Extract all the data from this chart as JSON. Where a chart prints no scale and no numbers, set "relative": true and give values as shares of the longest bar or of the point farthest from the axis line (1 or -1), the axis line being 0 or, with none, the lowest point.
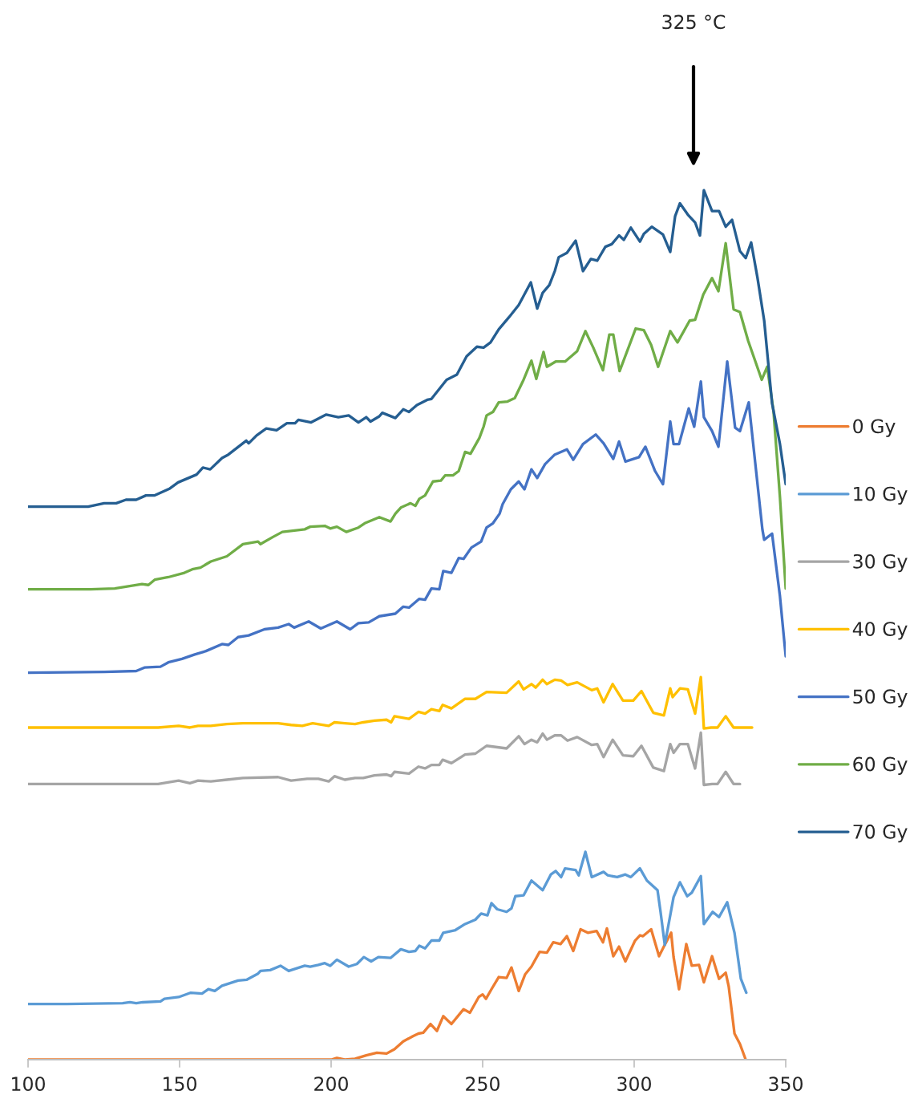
{
  "chart_data": {
    "type": "line",
    "relative": true,
    "xlim": [
      100,
      350
    ],
    "xticks": [
      100,
      150,
      200,
      250,
      300,
      350
    ],
    "grid": false,
    "legend": "right",
    "marker": "none",
    "line_style": "solid",
    "annotations": [
      "325 °C"
    ],
    "series": [
      {
        "name": "0 Gy",
        "color": "#ed7d31",
        "x": [
          100,
          200,
          201.9,
          204.5,
          207.9,
          211.6,
          215.1,
          218.3,
          220.9,
          223.8,
          227.0,
          228.8,
          230.4,
          232.8,
          234.9,
          237.0,
          239.7,
          243.7,
          245.8,
          248.7,
          250.0,
          251.1,
          252.9,
          255.3,
          257.9,
          259.5,
          261.9,
          264.0,
          266.1,
          268.8,
          271.2,
          273.3,
          275.7,
          277.8,
          279.9,
          282.3,
          284.7,
          287.6,
          289.7,
          291.0,
          293.1,
          295.0,
          297.1,
          300.3,
          301.9,
          302.9,
          305.6,
          308.2,
          309.8,
          312.2,
          313.0,
          314.8,
          317.2,
          319.0,
          321.4,
          323.0,
          325.7,
          328.0,
          330.2,
          331.2,
          333.1,
          334.9,
          336.8
        ],
        "values": [
          0,
          0,
          0.002,
          0,
          0.001,
          0.005,
          0.008,
          0.007,
          0.012,
          0.021,
          0.027,
          0.03,
          0.031,
          0.041,
          0.033,
          0.05,
          0.041,
          0.058,
          0.054,
          0.072,
          0.075,
          0.07,
          0.081,
          0.095,
          0.094,
          0.106,
          0.079,
          0.098,
          0.107,
          0.124,
          0.123,
          0.135,
          0.133,
          0.142,
          0.125,
          0.15,
          0.146,
          0.148,
          0.135,
          0.151,
          0.119,
          0.13,
          0.113,
          0.137,
          0.143,
          0.142,
          0.15,
          0.119,
          0.13,
          0.146,
          0.118,
          0.081,
          0.133,
          0.108,
          0.109,
          0.089,
          0.119,
          0.093,
          0.1,
          0.084,
          0.03,
          0.018,
          0
        ]
      },
      {
        "name": "10 Gy",
        "color": "#5b9bd5",
        "x": [
          100,
          112.7,
          131.2,
          133.6,
          135.7,
          137.8,
          143.7,
          145.0,
          149.7,
          153.7,
          157.4,
          159.5,
          161.6,
          164.0,
          169.3,
          172.2,
          175.9,
          176.7,
          179.9,
          183.3,
          186.0,
          191.3,
          193.1,
          195.8,
          197.9,
          199.7,
          201.9,
          205.8,
          208.5,
          210.8,
          213.2,
          215.6,
          219.6,
          223.0,
          225.7,
          227.8,
          229.1,
          231.0,
          233.1,
          235.7,
          237.0,
          241.0,
          244.2,
          247.6,
          249.5,
          251.6,
          252.9,
          254.8,
          257.9,
          259.5,
          260.8,
          263.5,
          266.1,
          269.8,
          272.5,
          274.1,
          275.9,
          277.2,
          280.7,
          281.7,
          283.9,
          286.0,
          289.9,
          291.3,
          294.4,
          297.1,
          298.9,
          301.9,
          304.2,
          307.7,
          308.7,
          310.1,
          313.0,
          315.1,
          317.5,
          319.0,
          322.0,
          323.0,
          325.9,
          328.0,
          330.7,
          333.1,
          335.2,
          337.0
        ],
        "values": [
          0.064,
          0.064,
          0.065,
          0.066,
          0.065,
          0.066,
          0.067,
          0.07,
          0.072,
          0.077,
          0.076,
          0.081,
          0.079,
          0.085,
          0.091,
          0.092,
          0.099,
          0.102,
          0.103,
          0.108,
          0.102,
          0.108,
          0.107,
          0.109,
          0.111,
          0.108,
          0.115,
          0.107,
          0.11,
          0.118,
          0.113,
          0.118,
          0.117,
          0.127,
          0.124,
          0.125,
          0.131,
          0.128,
          0.137,
          0.137,
          0.146,
          0.149,
          0.156,
          0.161,
          0.168,
          0.166,
          0.18,
          0.173,
          0.17,
          0.174,
          0.188,
          0.189,
          0.206,
          0.195,
          0.213,
          0.217,
          0.21,
          0.22,
          0.218,
          0.212,
          0.239,
          0.21,
          0.216,
          0.212,
          0.21,
          0.213,
          0.21,
          0.22,
          0.206,
          0.195,
          0.17,
          0.132,
          0.187,
          0.204,
          0.188,
          0.192,
          0.211,
          0.156,
          0.17,
          0.164,
          0.181,
          0.146,
          0.093,
          0.077
        ]
      },
      {
        "name": "30 Gy",
        "color": "#a5a5a5",
        "x": [
          100,
          142.9,
          149.7,
          153.4,
          156.1,
          160.3,
          165.6,
          170.9,
          182.5,
          186.8,
          192.1,
          195.8,
          199.2,
          201.1,
          204.5,
          207.9,
          210.6,
          214.3,
          218.3,
          219.8,
          220.9,
          225.7,
          228.8,
          231.0,
          233.1,
          235.7,
          236.8,
          239.7,
          244.2,
          247.6,
          251.3,
          257.9,
          261.9,
          263.8,
          266.1,
          268.0,
          269.8,
          271.2,
          273.8,
          275.9,
          278.0,
          281.2,
          286.0,
          287.8,
          289.9,
          292.9,
          296.3,
          299.7,
          302.4,
          306.3,
          309.8,
          311.9,
          313.0,
          315.1,
          317.7,
          320.1,
          322.0,
          323.0,
          325.7,
          327.5,
          330.2,
          332.8,
          334.9
        ],
        "values": [
          0.317,
          0.317,
          0.321,
          0.318,
          0.321,
          0.32,
          0.322,
          0.324,
          0.325,
          0.321,
          0.323,
          0.323,
          0.32,
          0.326,
          0.322,
          0.324,
          0.324,
          0.327,
          0.328,
          0.326,
          0.331,
          0.329,
          0.337,
          0.335,
          0.339,
          0.339,
          0.345,
          0.341,
          0.351,
          0.352,
          0.361,
          0.358,
          0.372,
          0.363,
          0.368,
          0.365,
          0.375,
          0.368,
          0.373,
          0.373,
          0.367,
          0.371,
          0.362,
          0.363,
          0.348,
          0.368,
          0.35,
          0.349,
          0.361,
          0.336,
          0.332,
          0.363,
          0.353,
          0.363,
          0.363,
          0.335,
          0.376,
          0.316,
          0.317,
          0.317,
          0.331,
          0.317,
          0.317
        ]
      },
      {
        "name": "40 Gy",
        "color": "#ffc000",
        "x": [
          100,
          142.9,
          149.7,
          153.4,
          156.1,
          160.3,
          165.6,
          170.9,
          182.5,
          186.8,
          190.5,
          193.9,
          199.2,
          201.1,
          204.5,
          207.9,
          210.6,
          214.3,
          218.3,
          219.8,
          220.9,
          225.7,
          228.8,
          231.0,
          233.1,
          235.7,
          236.8,
          239.7,
          244.2,
          247.6,
          251.3,
          257.9,
          261.9,
          263.5,
          266.1,
          267.5,
          269.8,
          271.2,
          273.8,
          275.9,
          278.0,
          281.2,
          286.0,
          287.8,
          289.9,
          292.9,
          296.3,
          299.7,
          302.4,
          306.3,
          309.8,
          311.9,
          312.7,
          315.1,
          317.7,
          320.1,
          322.0,
          323.0,
          325.4,
          327.5,
          330.2,
          332.8,
          338.9
        ],
        "values": [
          0.382,
          0.382,
          0.384,
          0.382,
          0.384,
          0.384,
          0.386,
          0.387,
          0.387,
          0.385,
          0.384,
          0.387,
          0.384,
          0.388,
          0.387,
          0.386,
          0.388,
          0.39,
          0.391,
          0.388,
          0.395,
          0.392,
          0.4,
          0.398,
          0.403,
          0.401,
          0.408,
          0.404,
          0.415,
          0.415,
          0.423,
          0.422,
          0.435,
          0.426,
          0.432,
          0.428,
          0.437,
          0.432,
          0.437,
          0.436,
          0.431,
          0.434,
          0.425,
          0.427,
          0.411,
          0.432,
          0.413,
          0.413,
          0.424,
          0.399,
          0.396,
          0.427,
          0.417,
          0.427,
          0.426,
          0.398,
          0.44,
          0.381,
          0.382,
          0.382,
          0.395,
          0.382,
          0.382
        ]
      },
      {
        "name": "50 Gy",
        "color": "#4472c4",
        "x": [
          100,
          125.1,
          135.7,
          138.4,
          143.7,
          146.3,
          150.8,
          155.0,
          158.7,
          164.0,
          166.1,
          169.3,
          172.8,
          178.0,
          182.5,
          186.0,
          187.8,
          192.6,
          196.6,
          201.9,
          206.3,
          209.0,
          212.4,
          215.9,
          221.2,
          223.8,
          225.7,
          229.1,
          231.0,
          233.1,
          235.7,
          237.0,
          239.7,
          242.1,
          243.7,
          246.3,
          249.5,
          251.3,
          253.4,
          255.6,
          256.6,
          259.3,
          261.9,
          263.8,
          266.1,
          268.0,
          270.6,
          273.8,
          277.8,
          279.9,
          283.1,
          287.3,
          289.9,
          293.1,
          295.0,
          297.1,
          301.6,
          303.7,
          306.9,
          309.5,
          311.9,
          313.0,
          314.8,
          318.0,
          319.8,
          322.0,
          323.0,
          325.7,
          327.8,
          330.7,
          333.3,
          334.9,
          337.8,
          342.3,
          342.9,
          345.5,
          348.1,
          350.0
        ],
        "values": [
          0.445,
          0.446,
          0.447,
          0.451,
          0.452,
          0.457,
          0.461,
          0.466,
          0.47,
          0.478,
          0.477,
          0.486,
          0.488,
          0.495,
          0.497,
          0.501,
          0.497,
          0.504,
          0.496,
          0.504,
          0.495,
          0.502,
          0.503,
          0.51,
          0.513,
          0.521,
          0.52,
          0.53,
          0.529,
          0.542,
          0.541,
          0.562,
          0.56,
          0.577,
          0.576,
          0.589,
          0.596,
          0.612,
          0.617,
          0.628,
          0.639,
          0.656,
          0.665,
          0.656,
          0.679,
          0.669,
          0.685,
          0.696,
          0.702,
          0.69,
          0.708,
          0.719,
          0.709,
          0.691,
          0.711,
          0.688,
          0.693,
          0.705,
          0.677,
          0.662,
          0.734,
          0.708,
          0.708,
          0.749,
          0.728,
          0.78,
          0.739,
          0.723,
          0.705,
          0.803,
          0.727,
          0.723,
          0.756,
          0.61,
          0.598,
          0.605,
          0.533,
          0.464
        ]
      },
      {
        "name": "60 Gy",
        "color": "#70ad47",
        "x": [
          100,
          120.6,
          128.6,
          137.6,
          139.7,
          141.8,
          146.3,
          151.6,
          154.2,
          156.9,
          160.3,
          165.6,
          170.9,
          175.9,
          176.7,
          180.7,
          183.9,
          191.3,
          193.1,
          197.9,
          199.7,
          201.9,
          205.0,
          209.0,
          211.1,
          215.9,
          219.6,
          221.2,
          223.0,
          226.2,
          227.8,
          229.1,
          231.0,
          233.6,
          236.2,
          237.6,
          240.2,
          242.1,
          244.2,
          246.0,
          248.9,
          250.3,
          251.3,
          253.4,
          255.3,
          258.2,
          260.6,
          263.5,
          266.1,
          267.7,
          270.1,
          271.2,
          274.1,
          277.2,
          281.2,
          283.9,
          286.5,
          289.7,
          291.8,
          293.1,
          295.2,
          300.5,
          303.2,
          305.6,
          307.9,
          311.9,
          314.3,
          318.3,
          320.1,
          322.8,
          325.7,
          327.8,
          330.2,
          332.8,
          334.9,
          337.6,
          342.1,
          343.9,
          346.0,
          348.1,
          350.0
        ],
        "values": [
          0.541,
          0.541,
          0.542,
          0.547,
          0.546,
          0.552,
          0.555,
          0.56,
          0.564,
          0.566,
          0.573,
          0.579,
          0.593,
          0.596,
          0.593,
          0.601,
          0.607,
          0.61,
          0.613,
          0.614,
          0.611,
          0.613,
          0.607,
          0.612,
          0.617,
          0.624,
          0.619,
          0.628,
          0.635,
          0.64,
          0.637,
          0.645,
          0.649,
          0.665,
          0.666,
          0.672,
          0.672,
          0.677,
          0.699,
          0.697,
          0.715,
          0.728,
          0.741,
          0.745,
          0.756,
          0.757,
          0.761,
          0.782,
          0.804,
          0.783,
          0.814,
          0.797,
          0.803,
          0.803,
          0.815,
          0.838,
          0.819,
          0.793,
          0.834,
          0.834,
          0.792,
          0.841,
          0.839,
          0.822,
          0.797,
          0.838,
          0.825,
          0.85,
          0.851,
          0.88,
          0.899,
          0.884,
          0.939,
          0.863,
          0.86,
          0.827,
          0.782,
          0.797,
          0.745,
          0.647,
          0.542
        ]
      },
      {
        "name": "70 Gy",
        "color": "#255e91",
        "x": [
          100,
          119.8,
          125.1,
          129.1,
          132.3,
          135.7,
          138.9,
          141.8,
          146.8,
          149.5,
          155.6,
          157.7,
          160.1,
          164.0,
          166.1,
          172.0,
          172.8,
          175.4,
          178.6,
          182.0,
          185.4,
          188.1,
          189.2,
          193.4,
          198.4,
          202.4,
          205.8,
          209.0,
          211.6,
          213.0,
          215.9,
          216.9,
          221.2,
          223.8,
          225.7,
          228.3,
          231.7,
          233.1,
          238.1,
          241.5,
          244.7,
          248.1,
          250.3,
          252.6,
          255.3,
          258.7,
          261.9,
          265.9,
          268.0,
          269.8,
          272.0,
          273.8,
          275.1,
          277.8,
          280.7,
          283.1,
          285.7,
          287.8,
          290.5,
          292.6,
          295.0,
          296.6,
          298.9,
          301.9,
          303.2,
          305.8,
          309.5,
          311.9,
          313.5,
          315.1,
          317.7,
          320.1,
          321.7,
          323.0,
          325.7,
          328.0,
          330.2,
          332.3,
          334.9,
          336.8,
          338.6,
          340.7,
          342.9,
          345.5,
          348.1,
          350.0
        ],
        "values": [
          0.636,
          0.636,
          0.64,
          0.64,
          0.644,
          0.644,
          0.649,
          0.649,
          0.657,
          0.664,
          0.673,
          0.681,
          0.679,
          0.692,
          0.696,
          0.712,
          0.709,
          0.718,
          0.726,
          0.724,
          0.732,
          0.732,
          0.736,
          0.733,
          0.742,
          0.739,
          0.741,
          0.733,
          0.739,
          0.734,
          0.74,
          0.744,
          0.738,
          0.748,
          0.745,
          0.753,
          0.759,
          0.76,
          0.782,
          0.788,
          0.809,
          0.82,
          0.819,
          0.825,
          0.84,
          0.854,
          0.868,
          0.894,
          0.864,
          0.882,
          0.891,
          0.907,
          0.923,
          0.928,
          0.942,
          0.907,
          0.921,
          0.919,
          0.935,
          0.938,
          0.948,
          0.943,
          0.957,
          0.941,
          0.95,
          0.958,
          0.949,
          0.929,
          0.97,
          0.985,
          0.972,
          0.963,
          0.948,
          1.0,
          0.976,
          0.976,
          0.958,
          0.966,
          0.93,
          0.922,
          0.94,
          0.899,
          0.85,
          0.755,
          0.708,
          0.662
        ]
      }
    ]
  }
}
